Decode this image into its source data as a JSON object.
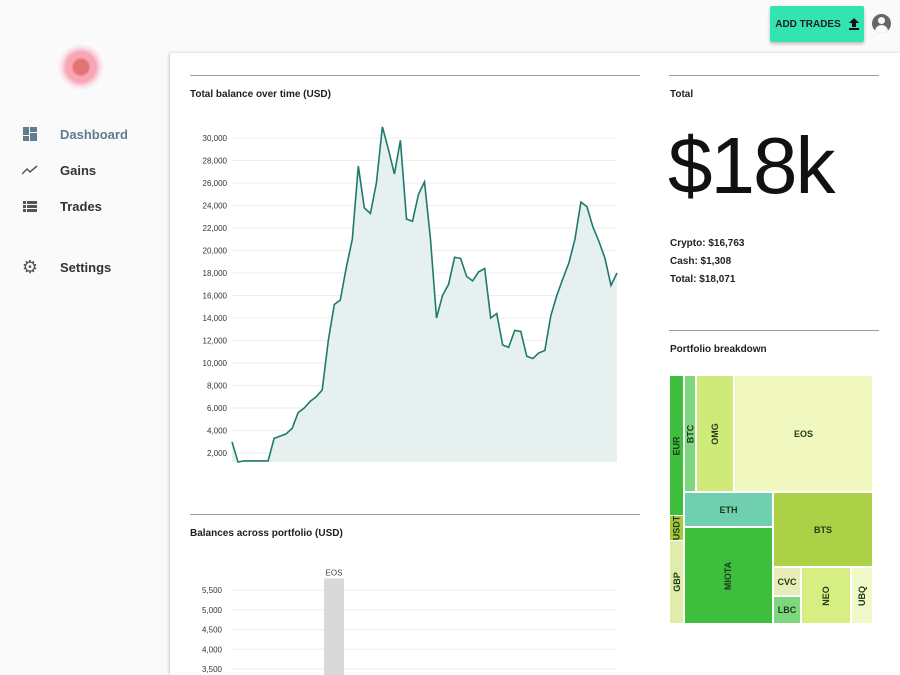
{
  "header": {
    "add_trades_label": "ADD TRADES",
    "upload_icon": "upload-icon",
    "account_icon": "account-circle-icon",
    "accent": "#33e3b0"
  },
  "sidebar": {
    "items": [
      {
        "label": "Dashboard",
        "icon": "dashboard-icon",
        "active": true
      },
      {
        "label": "Gains",
        "icon": "trending-icon",
        "active": false
      },
      {
        "label": "Trades",
        "icon": "list-icon",
        "active": false
      },
      {
        "label": "Settings",
        "icon": "gear-icon",
        "active": false
      }
    ]
  },
  "balance_chart": {
    "title": "Total balance over time (USD)",
    "line_color": "#1f7a6c",
    "fill_color": "#e6f0ee",
    "yticks": [
      "2,000",
      "4,000",
      "6,000",
      "8,000",
      "10,000",
      "12,000",
      "14,000",
      "16,000",
      "18,000",
      "20,000",
      "22,000",
      "24,000",
      "26,000",
      "28,000",
      "30,000"
    ],
    "values": [
      3000,
      1200,
      1300,
      1300,
      1300,
      1300,
      1300,
      3300,
      3500,
      3700,
      4200,
      5600,
      6000,
      6600,
      7000,
      7600,
      12000,
      15200,
      15600,
      18500,
      21000,
      27500,
      23800,
      23300,
      26000,
      31000,
      29000,
      26800,
      29800,
      22800,
      22600,
      25000,
      26100,
      21000,
      14000,
      16000,
      17000,
      19400,
      19300,
      17700,
      17300,
      18100,
      18400,
      14000,
      14400,
      11600,
      11400,
      12900,
      12800,
      10600,
      10400,
      10900,
      11100,
      14200,
      16000,
      17500,
      18900,
      21000,
      24300,
      23900,
      22100,
      20800,
      19300,
      16900,
      18000
    ]
  },
  "total": {
    "title": "Total",
    "big_value": "$18k",
    "crypto": "Crypto: $16,763",
    "cash": "Cash: $1,308",
    "total": "Total: $18,071"
  },
  "breakdown": {
    "title": "Portfolio breakdown",
    "cells": [
      {
        "label": "EUR",
        "color": "#3dbe3d",
        "vertical": true
      },
      {
        "label": "USDT",
        "color": "#a8c83a",
        "vertical": true
      },
      {
        "label": "GBP",
        "color": "#e0ecaa",
        "vertical": true
      },
      {
        "label": "BTC",
        "color": "#7ed67e",
        "vertical": true
      },
      {
        "label": "OMG",
        "color": "#d0ea7a",
        "vertical": true
      },
      {
        "label": "EOS",
        "color": "#f0f8c0",
        "vertical": false
      },
      {
        "label": "ETH",
        "color": "#6fcfae",
        "vertical": false
      },
      {
        "label": "MIOTA",
        "color": "#3dbe3d",
        "vertical": true
      },
      {
        "label": "BTS",
        "color": "#acd046",
        "vertical": false
      },
      {
        "label": "CVC",
        "color": "#e8ecb8",
        "vertical": false
      },
      {
        "label": "LBC",
        "color": "#7ed67e",
        "vertical": false
      },
      {
        "label": "NEO",
        "color": "#d6ee82",
        "vertical": true
      },
      {
        "label": "UBQ",
        "color": "#f2f9c8",
        "vertical": true
      }
    ]
  },
  "portfolio_chart": {
    "title": "Balances across portfolio (USD)",
    "yticks": [
      "3,500",
      "4,000",
      "4,500",
      "5,000",
      "5,500"
    ],
    "bars": [
      {
        "label": "EOS",
        "value": 5800,
        "color": "#d9d9d9"
      }
    ]
  }
}
